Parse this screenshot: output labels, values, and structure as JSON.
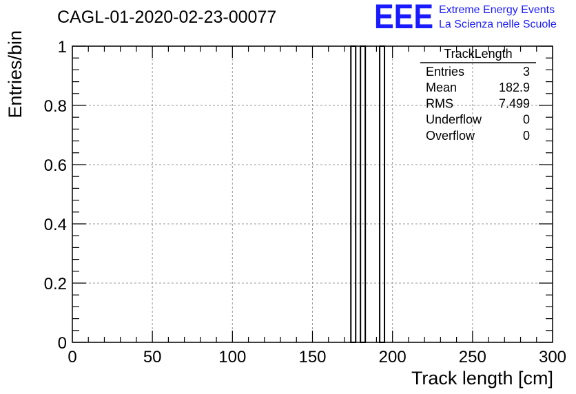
{
  "chart_data": {
    "type": "bar",
    "title": "CAGL-01-2020-02-23-00077",
    "xlabel": "Track length [cm]",
    "ylabel": "Entries/bin",
    "xlim": [
      0,
      300
    ],
    "ylim": [
      0,
      1
    ],
    "x_ticks": [
      "0",
      "50",
      "100",
      "150",
      "200",
      "250",
      "300"
    ],
    "y_ticks": [
      "0",
      "0.2",
      "0.4",
      "0.6",
      "0.8",
      "1"
    ],
    "grid": true,
    "bins": [
      {
        "x_low": 174,
        "x_high": 177,
        "value": 1
      },
      {
        "x_low": 180,
        "x_high": 183,
        "value": 1
      },
      {
        "x_low": 192,
        "x_high": 195,
        "value": 1
      }
    ]
  },
  "stats": {
    "name": "TrackLength",
    "rows": [
      {
        "label": "Entries",
        "value": "3"
      },
      {
        "label": "Mean",
        "value": "182.9"
      },
      {
        "label": "RMS",
        "value": "7.499"
      },
      {
        "label": "Underflow",
        "value": "0"
      },
      {
        "label": "Overflow",
        "value": "0"
      }
    ]
  },
  "logo": {
    "mark": "EEE",
    "line1": "Extreme Energy Events",
    "line2": "La Scienza nelle Scuole",
    "color": "#1a1aff"
  }
}
